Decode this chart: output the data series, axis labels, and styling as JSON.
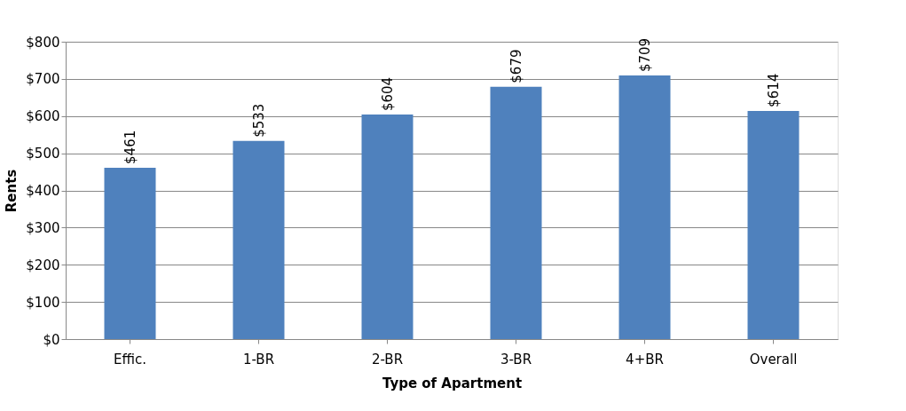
{
  "chart_data": {
    "type": "bar",
    "xlabel": "Type of Apartment",
    "ylabel": "Rents",
    "categories": [
      "Effic.",
      "1-BR",
      "2-BR",
      "3-BR",
      "4+BR",
      "Overall"
    ],
    "values": [
      461,
      533,
      604,
      679,
      709,
      614
    ],
    "value_labels": [
      "$461",
      "$533",
      "$604",
      "$679",
      "$709",
      "$614"
    ],
    "color": "#4f81bd",
    "ylim": [
      0,
      800
    ],
    "yticks": [
      {
        "value": 0,
        "label": "$0"
      },
      {
        "value": 100,
        "label": "$100"
      },
      {
        "value": 200,
        "label": "$200"
      },
      {
        "value": 300,
        "label": "$300"
      },
      {
        "value": 400,
        "label": "$400"
      },
      {
        "value": 500,
        "label": "$500"
      },
      {
        "value": 600,
        "label": "$600"
      },
      {
        "value": 700,
        "label": "$700"
      },
      {
        "value": 800,
        "label": "$800"
      }
    ],
    "grid": "y"
  }
}
